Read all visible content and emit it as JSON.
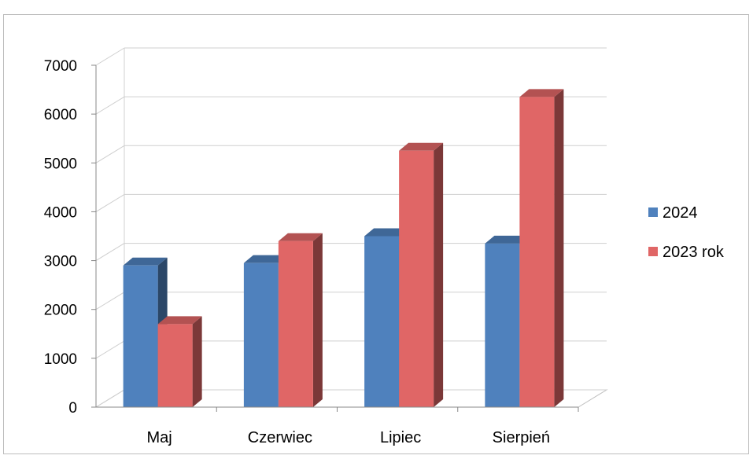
{
  "chart_data": {
    "type": "bar",
    "categories": [
      "Maj",
      "Czerwiec",
      "Lipiec",
      "Sierpień"
    ],
    "series": [
      {
        "name": "2024",
        "values": [
          2900,
          2950,
          3500,
          3350
        ],
        "color": "#4f81bd"
      },
      {
        "name": "2023 rok",
        "values": [
          1700,
          3400,
          5250,
          6350
        ],
        "color": "#e06666"
      }
    ],
    "ylim": [
      0,
      7000
    ],
    "y_ticks": [
      "0",
      "1000",
      "2000",
      "3000",
      "4000",
      "5000",
      "6000",
      "7000"
    ],
    "grid": true,
    "style": "3d-clustered-column",
    "legend_position": "right"
  }
}
